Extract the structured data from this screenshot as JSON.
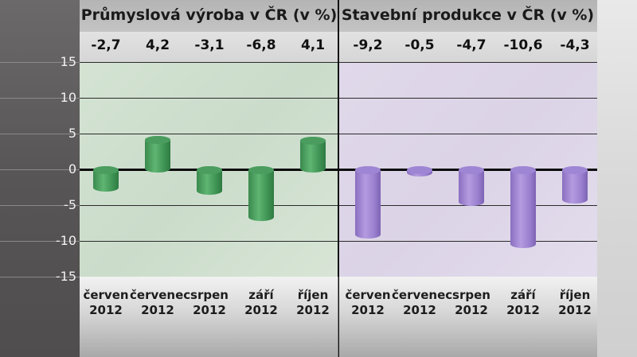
{
  "chart_data": [
    {
      "type": "bar",
      "title": "Průmyslová výroba v ČR (v %)",
      "categories": [
        "červen 2012",
        "červenec 2012",
        "srpen 2012",
        "září 2012",
        "říjen 2012"
      ],
      "values": [
        -2.7,
        4.2,
        -3.1,
        -6.8,
        4.1
      ],
      "value_labels": [
        "-2,7",
        "4,2",
        "-3,1",
        "-6,8",
        "4,1"
      ],
      "xlabel": "",
      "ylabel": "",
      "ylim": [
        -15,
        15
      ],
      "yticks": [
        15,
        10,
        5,
        0,
        -5,
        -10,
        -15
      ],
      "grid": true,
      "color": "#4a9d5e",
      "style": "3d-cylinder"
    },
    {
      "type": "bar",
      "title": "Stavební produkce v ČR (v %)",
      "categories": [
        "červen 2012",
        "červenec 2012",
        "srpen 2012",
        "září 2012",
        "říjen 2012"
      ],
      "values": [
        -9.2,
        -0.5,
        -4.7,
        -10.6,
        -4.3
      ],
      "value_labels": [
        "-9,2",
        "-0,5",
        "-4,7",
        "-10,6",
        "-4,3"
      ],
      "xlabel": "",
      "ylabel": "",
      "ylim": [
        -15,
        15
      ],
      "yticks": [
        15,
        10,
        5,
        0,
        -5,
        -10,
        -15
      ],
      "grid": true,
      "color": "#9f86d4",
      "style": "3d-cylinder"
    }
  ],
  "panels": {
    "left": {
      "title": "Průmyslová výroba v ČR (v %)",
      "values": [
        "-2,7",
        "4,2",
        "-3,1",
        "-6,8",
        "4,1"
      ],
      "months": [
        "červen",
        "červenec",
        "srpen",
        "září",
        "říjen"
      ],
      "year": "2012"
    },
    "right": {
      "title": "Stavební produkce v ČR (v %)",
      "values": [
        "-9,2",
        "-0,5",
        "-4,7",
        "-10,6",
        "-4,3"
      ],
      "months": [
        "červen",
        "červenec",
        "srpen",
        "září",
        "říjen"
      ],
      "year": "2012"
    }
  },
  "yaxis": {
    "ticks": [
      "15",
      "10",
      "5",
      "0",
      "-5",
      "-10",
      "-15"
    ]
  }
}
